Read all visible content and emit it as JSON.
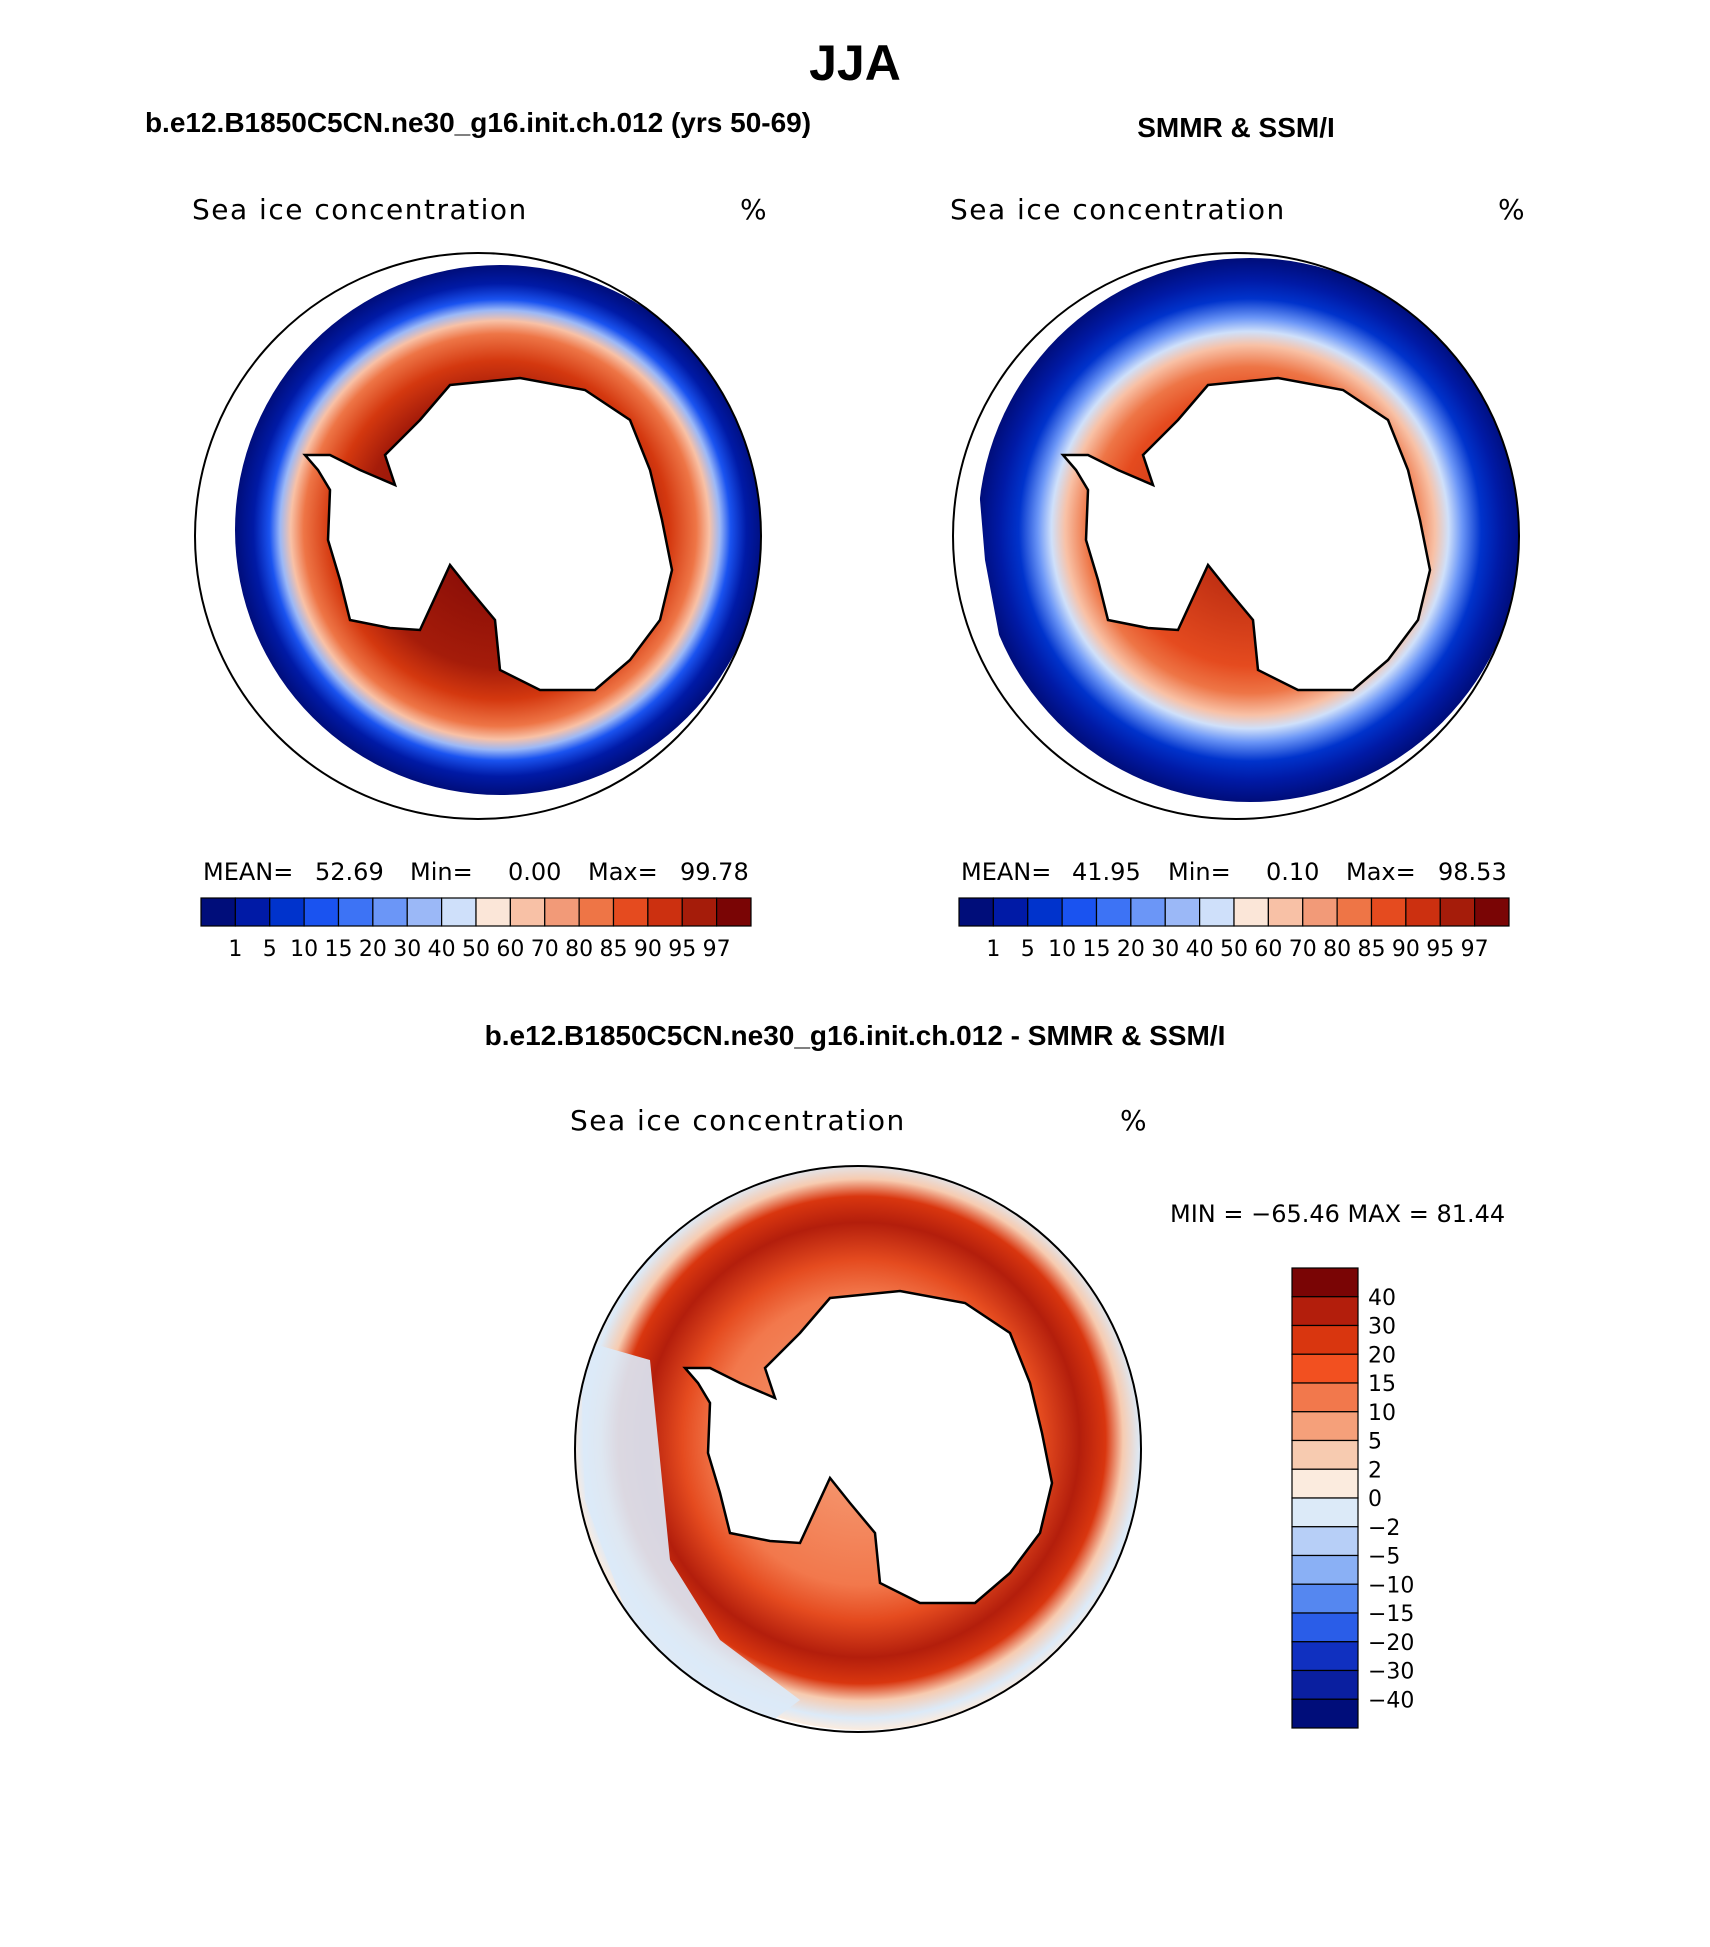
{
  "page_title": "JJA",
  "panels": {
    "model": {
      "title": "b.e12.B1850C5CN.ne30_g16.init.ch.012 (yrs 50-69)",
      "variable": "Sea ice concentration",
      "units": "%",
      "stats": {
        "mean_label": "MEAN=",
        "mean": "52.69",
        "min_label": "Min=",
        "min": "0.00",
        "max_label": "Max=",
        "max": "99.78"
      }
    },
    "obs": {
      "title": "SMMR & SSM/I",
      "variable": "Sea ice concentration",
      "units": "%",
      "stats": {
        "mean_label": "MEAN=",
        "mean": "41.95",
        "min_label": "Min=",
        "min": "0.10",
        "max_label": "Max=",
        "max": "98.53"
      }
    },
    "diff": {
      "title": "b.e12.B1850C5CN.ne30_g16.init.ch.012 - SMMR & SSM/I",
      "variable": "Sea ice concentration",
      "units": "%",
      "minmax_text": "MIN = −65.46 MAX =   81.44"
    }
  },
  "concentration_colorbar": {
    "levels": [
      "1",
      "5",
      "10",
      "15",
      "20",
      "30",
      "40",
      "50",
      "60",
      "70",
      "80",
      "85",
      "90",
      "95",
      "97"
    ],
    "colors": [
      "#000d7a",
      "#001aa6",
      "#0033cc",
      "#1a53f0",
      "#3d73f5",
      "#6b96f7",
      "#9bb8f7",
      "#cfe0fa",
      "#fbe6d8",
      "#f8c1a6",
      "#f29a78",
      "#ee7546",
      "#e54b1f",
      "#cc3010",
      "#a51c0a",
      "#7a0505"
    ]
  },
  "difference_colorbar": {
    "levels": [
      "40",
      "30",
      "20",
      "15",
      "10",
      "5",
      "2",
      "0",
      "−2",
      "−5",
      "−10",
      "−15",
      "−20",
      "−30",
      "−40"
    ],
    "colors": [
      "#7a0505",
      "#b31e0c",
      "#d9360f",
      "#f25020",
      "#f2784c",
      "#f5a07a",
      "#f7cbb0",
      "#fbebde",
      "#dceaf8",
      "#b7cff7",
      "#8ab0f5",
      "#5587f0",
      "#2a5de8",
      "#1030c0",
      "#0a1fa0",
      "#000d7a"
    ]
  }
}
